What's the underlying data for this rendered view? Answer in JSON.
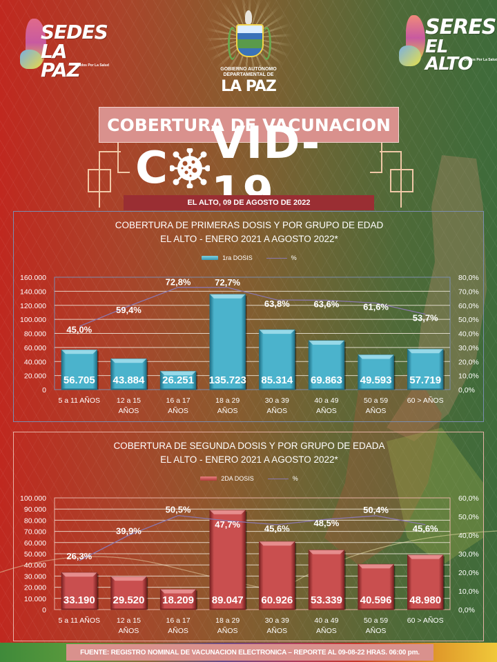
{
  "header": {
    "left_logo": {
      "line1": "SEDES",
      "line2": "LA PAZ",
      "tagline": "Unidos Por La Salud"
    },
    "center_emblem": {
      "line1": "GOBIERNO AUTÓNOMO",
      "line2": "DEPARTAMENTAL DE",
      "line3": "LA PAZ"
    },
    "right_logo": {
      "line1": "SERES",
      "line2": "EL ALTO",
      "tagline": "Unidos Por La Salud"
    }
  },
  "title": "COBERTURA DE VACUNACION",
  "covid_logo": {
    "left": "C",
    "right": "VID-19"
  },
  "date_line": "EL ALTO, 09 DE AGOSTO DE 2022",
  "footer": "FUENTE: REGISTRO NOMINAL DE VACUNACION ELECTRONICA – REPORTE AL 09-08-22 HRAS. 06:00 pm.",
  "colors": {
    "bar1": "#4bb3cc",
    "bar2": "#c94f4f",
    "line": "#8a78b0",
    "title_box": "#d9918d",
    "date_bar": "#9a2e33"
  },
  "chart_data": [
    {
      "type": "bar",
      "title": "COBERTURA DE PRIMERAS DOSIS Y POR GRUPO DE EDAD",
      "subtitle": "EL ALTO - ENERO 2021 A AGOSTO 2022*",
      "categories": [
        "5 a 11 AÑOS",
        "12 a 15 AÑOS",
        "16 a 17 AÑOS",
        "18 a 29 AÑOS",
        "30 a 39 AÑOS",
        "40 a 49 AÑOS",
        "50 a 59 AÑOS",
        "60 > AÑOS"
      ],
      "category_lines": [
        [
          "5 a 11 AÑOS"
        ],
        [
          "12 a 15",
          "AÑOS"
        ],
        [
          "16 a 17",
          "AÑOS"
        ],
        [
          "18 a 29",
          "AÑOS"
        ],
        [
          "30 a 39",
          "AÑOS"
        ],
        [
          "40 a 49",
          "AÑOS"
        ],
        [
          "50 a 59",
          "AÑOS"
        ],
        [
          "60 > AÑOS"
        ]
      ],
      "series": [
        {
          "name": "1ra DOSIS",
          "type": "bar",
          "axis": "left",
          "values": [
            56705,
            43884,
            26251,
            135723,
            85314,
            69863,
            49593,
            57719
          ],
          "labels": [
            "56.705",
            "43.884",
            "26.251",
            "135.723",
            "85.314",
            "69.863",
            "49.593",
            "57.719"
          ]
        },
        {
          "name": "%",
          "type": "line",
          "axis": "right",
          "values": [
            45.0,
            59.4,
            72.8,
            72.7,
            63.8,
            63.6,
            61.6,
            53.7
          ],
          "labels": [
            "45,0%",
            "59,4%",
            "72,8%",
            "72,7%",
            "63,8%",
            "63,6%",
            "61,6%",
            "53,7%"
          ]
        }
      ],
      "y_left": {
        "min": 0,
        "max": 160000,
        "step": 20000,
        "ticks": [
          "0",
          "20.000",
          "40.000",
          "60.000",
          "80.000",
          "100.000",
          "120.000",
          "140.000",
          "160.000"
        ]
      },
      "y_right": {
        "min": 0,
        "max": 80,
        "step": 10,
        "ticks": [
          "0,0%",
          "10,0%",
          "20,0%",
          "30,0%",
          "40,0%",
          "50,0%",
          "60,0%",
          "70,0%",
          "80,0%"
        ]
      },
      "legend": {
        "position": "top",
        "bar_label": "1ra DOSIS",
        "line_label": "%"
      },
      "grid": true
    },
    {
      "type": "bar",
      "title": "COBERTURA DE SEGUNDA DOSIS Y POR GRUPO DE EDADA",
      "subtitle": "EL ALTO - ENERO 2021 A AGOSTO 2022*",
      "categories": [
        "5 a 11 AÑOS",
        "12 a 15 AÑOS",
        "16 a 17 AÑOS",
        "18 a 29 AÑOS",
        "30 a 39 AÑOS",
        "40 a 49 AÑOS",
        "50 a 59 AÑOS",
        "60 > AÑOS"
      ],
      "category_lines": [
        [
          "5 a 11 AÑOS"
        ],
        [
          "12 a 15",
          "AÑOS"
        ],
        [
          "16 a 17",
          "AÑOS"
        ],
        [
          "18 a 29",
          "AÑOS"
        ],
        [
          "30 a 39",
          "AÑOS"
        ],
        [
          "40 a 49",
          "AÑOS"
        ],
        [
          "50 a 59",
          "AÑOS"
        ],
        [
          "60 > AÑOS"
        ]
      ],
      "series": [
        {
          "name": "2DA DOSIS",
          "type": "bar",
          "axis": "left",
          "values": [
            33190,
            29520,
            18209,
            89047,
            60926,
            53339,
            40596,
            48980
          ],
          "labels": [
            "33.190",
            "29.520",
            "18.209",
            "89.047",
            "60.926",
            "53.339",
            "40.596",
            "48.980"
          ]
        },
        {
          "name": "%",
          "type": "line",
          "axis": "right",
          "values": [
            26.3,
            39.9,
            50.5,
            47.7,
            45.6,
            48.5,
            50.4,
            45.6
          ],
          "labels": [
            "26,3%",
            "39,9%",
            "50,5%",
            "47,7%",
            "45,6%",
            "48,5%",
            "50,4%",
            "45,6%"
          ]
        }
      ],
      "y_left": {
        "min": 0,
        "max": 100000,
        "step": 10000,
        "ticks": [
          "0",
          "10.000",
          "20.000",
          "30.000",
          "40.000",
          "50.000",
          "60.000",
          "70.000",
          "80.000",
          "90.000",
          "100.000"
        ]
      },
      "y_right": {
        "min": 0,
        "max": 60,
        "step": 10,
        "ticks": [
          "0,0%",
          "10,0%",
          "20,0%",
          "30,0%",
          "40,0%",
          "50,0%",
          "60,0%"
        ]
      },
      "legend": {
        "position": "top",
        "bar_label": "2DA DOSIS",
        "line_label": "%"
      },
      "grid": true
    }
  ]
}
